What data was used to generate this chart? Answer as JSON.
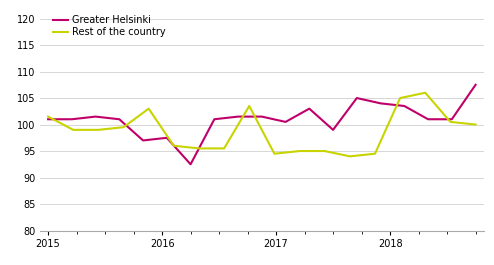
{
  "ylim": [
    80,
    122
  ],
  "yticks": [
    80,
    85,
    90,
    95,
    100,
    105,
    110,
    115,
    120
  ],
  "xtick_labels": [
    "2015",
    "2016",
    "2017",
    "2018"
  ],
  "greater_helsinki": [
    101.0,
    101.0,
    101.5,
    101.0,
    97.0,
    97.5,
    92.5,
    101.0,
    101.5,
    101.5,
    100.5,
    103.0,
    99.0,
    105.0,
    104.0,
    103.5,
    101.0,
    101.0,
    107.5
  ],
  "rest_of_country": [
    101.5,
    99.0,
    99.0,
    99.5,
    103.0,
    96.0,
    95.5,
    95.5,
    103.5,
    94.5,
    95.0,
    95.0,
    94.0,
    94.5,
    105.0,
    106.0,
    100.5,
    100.0
  ],
  "helsinki_color": "#c0006a",
  "rest_color": "#c8d400",
  "line_width": 1.5,
  "legend_labels": [
    "Greater Helsinki",
    "Rest of the country"
  ],
  "background_color": "#ffffff",
  "grid_color": "#d0d0d0"
}
